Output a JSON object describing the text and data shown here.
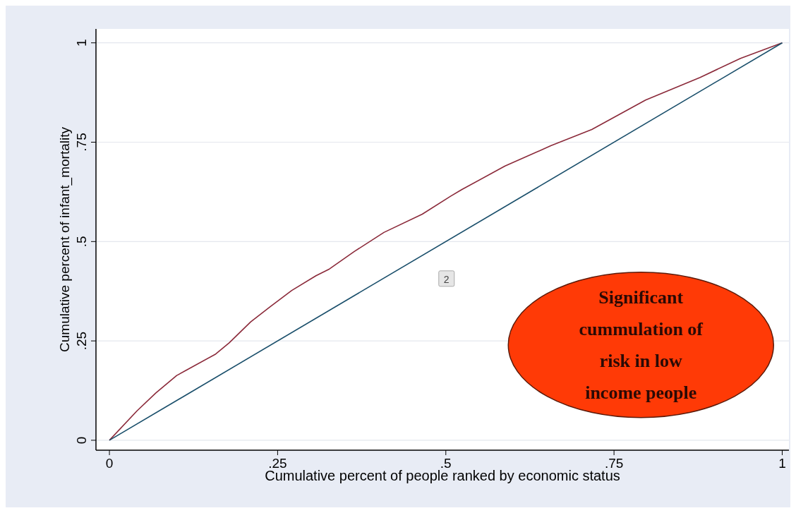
{
  "chart_data": {
    "type": "line",
    "xlabel": "Cumulative percent of people ranked by economic status",
    "ylabel": "Cumulative percent of infant_mortality",
    "xlim": [
      -0.02,
      1.01
    ],
    "ylim": [
      -0.025,
      1.035
    ],
    "xticks": [
      {
        "value": 0,
        "label": "0"
      },
      {
        "value": 0.25,
        "label": ".25"
      },
      {
        "value": 0.5,
        "label": ".5"
      },
      {
        "value": 0.75,
        "label": ".75"
      },
      {
        "value": 1,
        "label": "1"
      }
    ],
    "yticks": [
      {
        "value": 0,
        "label": "0"
      },
      {
        "value": 0.25,
        "label": ".25"
      },
      {
        "value": 0.5,
        "label": ".5"
      },
      {
        "value": 0.75,
        "label": ".75"
      },
      {
        "value": 1,
        "label": "1"
      }
    ],
    "grid": "y",
    "series": [
      {
        "color": "#8b2a3a",
        "x": [
          0,
          0.041,
          0.069,
          0.1,
          0.114,
          0.158,
          0.178,
          0.21,
          0.239,
          0.271,
          0.307,
          0.327,
          0.364,
          0.408,
          0.465,
          0.507,
          0.524,
          0.588,
          0.656,
          0.717,
          0.797,
          0.878,
          0.938,
          0.997,
          1
        ],
        "values": [
          0,
          0.074,
          0.119,
          0.163,
          0.176,
          0.217,
          0.245,
          0.298,
          0.336,
          0.377,
          0.414,
          0.431,
          0.475,
          0.523,
          0.569,
          0.614,
          0.631,
          0.69,
          0.741,
          0.782,
          0.856,
          0.913,
          0.961,
          0.998,
          1
        ]
      },
      {
        "color": "#1a4f6b",
        "x": [
          0,
          1
        ],
        "values": [
          0,
          1
        ]
      }
    ],
    "annotations": [
      "2",
      "Significant cummulation of risk in low income people"
    ]
  }
}
